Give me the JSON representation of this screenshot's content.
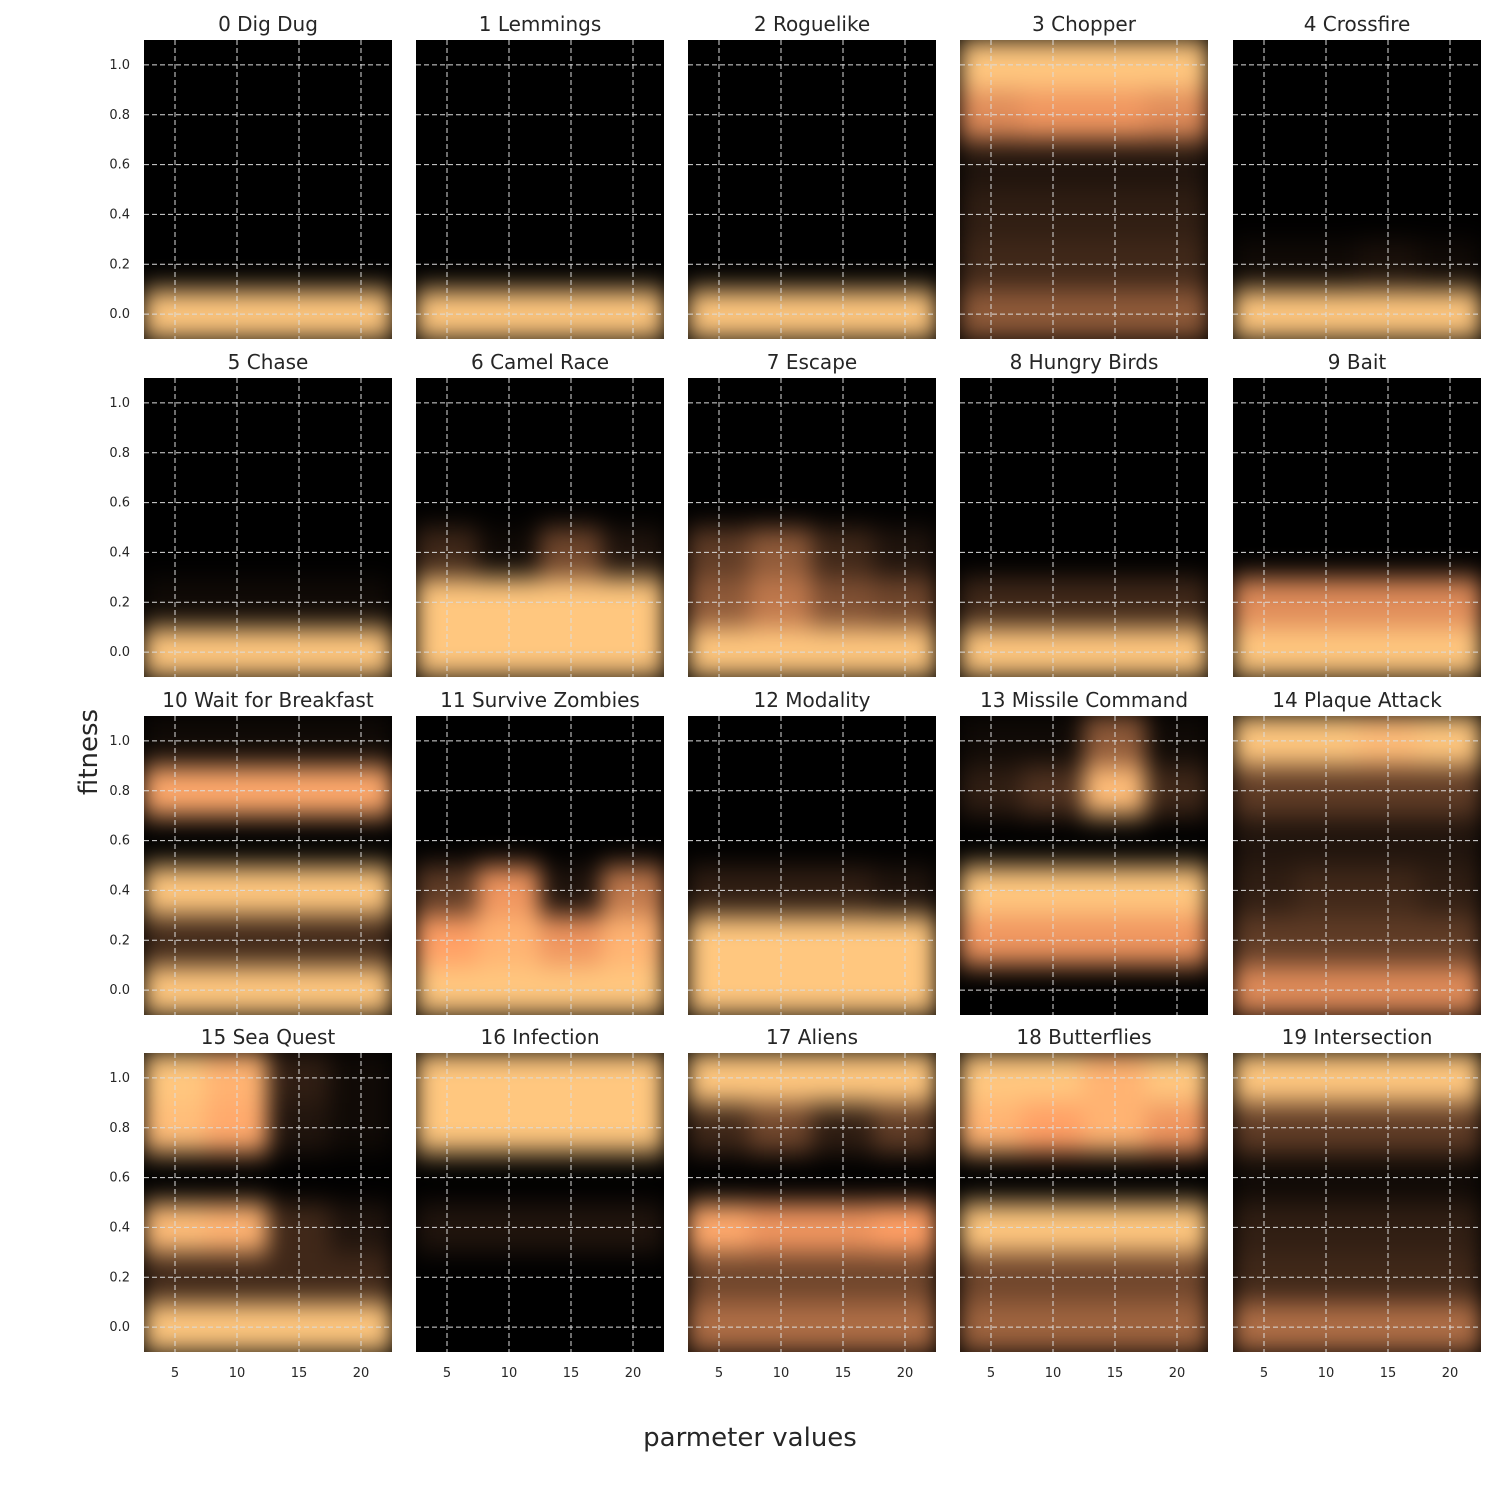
{
  "figure": {
    "xlabel": "parmeter values",
    "ylabel": "fitness"
  },
  "chart_data": {
    "type": "heatmap",
    "colormap": "copper",
    "xlim": [
      2.5,
      22.5
    ],
    "ylim": [
      -0.1,
      1.1
    ],
    "x_ticks": [
      5,
      10,
      15,
      20
    ],
    "y_ticks": [
      0.0,
      0.2,
      0.4,
      0.6,
      0.8,
      1.0
    ],
    "x_tick_labels": [
      "5",
      "10",
      "15",
      "20"
    ],
    "y_tick_labels": [
      "0.0",
      "0.2",
      "0.4",
      "0.6",
      "0.8",
      "1.0"
    ],
    "grid": "dashed",
    "fitness_bins": [
      0.0,
      0.2,
      0.4,
      0.6,
      0.8,
      1.0
    ],
    "parameter_columns": [
      5,
      10,
      15,
      20
    ],
    "panels": [
      {
        "title": "0 Dig Dug",
        "values": [
          [
            1,
            1,
            1,
            1
          ],
          [
            0,
            0,
            0,
            0
          ],
          [
            0,
            0,
            0,
            0
          ],
          [
            0,
            0,
            0,
            0
          ],
          [
            0,
            0,
            0,
            0
          ],
          [
            0,
            0,
            0,
            0
          ]
        ]
      },
      {
        "title": "1 Lemmings",
        "values": [
          [
            1,
            1,
            1,
            1
          ],
          [
            0,
            0,
            0,
            0
          ],
          [
            0,
            0,
            0,
            0
          ],
          [
            0,
            0,
            0,
            0
          ],
          [
            0,
            0,
            0,
            0
          ],
          [
            0,
            0,
            0,
            0
          ]
        ]
      },
      {
        "title": "2 Roguelike",
        "values": [
          [
            1,
            1,
            1,
            1
          ],
          [
            0,
            0,
            0,
            0
          ],
          [
            0,
            0,
            0,
            0
          ],
          [
            0,
            0,
            0,
            0
          ],
          [
            0,
            0,
            0,
            0
          ],
          [
            0,
            0,
            0,
            0
          ]
        ]
      },
      {
        "title": "3 Chopper",
        "values": [
          [
            0.45,
            0.45,
            0.45,
            0.45
          ],
          [
            0.2,
            0.2,
            0.2,
            0.2
          ],
          [
            0.15,
            0.15,
            0.15,
            0.15
          ],
          [
            0.1,
            0.1,
            0.1,
            0.1
          ],
          [
            0.7,
            0.75,
            0.75,
            0.7
          ],
          [
            1,
            1,
            1,
            1
          ]
        ]
      },
      {
        "title": "4 Crossfire",
        "values": [
          [
            1,
            1,
            1,
            1
          ],
          [
            0.05,
            0.05,
            0.08,
            0.05
          ],
          [
            0,
            0,
            0,
            0
          ],
          [
            0,
            0,
            0,
            0
          ],
          [
            0,
            0,
            0,
            0
          ],
          [
            0,
            0,
            0,
            0
          ]
        ]
      },
      {
        "title": "5 Chase",
        "values": [
          [
            1,
            1,
            1,
            1
          ],
          [
            0.05,
            0.05,
            0.05,
            0.05
          ],
          [
            0,
            0,
            0,
            0
          ],
          [
            0,
            0,
            0,
            0
          ],
          [
            0,
            0,
            0,
            0
          ],
          [
            0,
            0,
            0,
            0
          ]
        ]
      },
      {
        "title": "6 Camel Race",
        "values": [
          [
            1,
            1,
            1,
            1
          ],
          [
            1,
            1,
            1,
            1
          ],
          [
            0.2,
            0.05,
            0.35,
            0.1
          ],
          [
            0,
            0,
            0,
            0
          ],
          [
            0,
            0,
            0,
            0
          ],
          [
            0,
            0,
            0,
            0
          ]
        ]
      },
      {
        "title": "7 Escape",
        "values": [
          [
            1,
            1,
            1,
            1
          ],
          [
            0.45,
            0.6,
            0.4,
            0.35
          ],
          [
            0.3,
            0.45,
            0.2,
            0.1
          ],
          [
            0,
            0,
            0,
            0
          ],
          [
            0,
            0,
            0,
            0
          ],
          [
            0,
            0,
            0,
            0
          ]
        ]
      },
      {
        "title": "8 Hungry Birds",
        "values": [
          [
            1,
            1,
            1,
            1
          ],
          [
            0.2,
            0.2,
            0.2,
            0.2
          ],
          [
            0,
            0,
            0,
            0
          ],
          [
            0,
            0,
            0,
            0
          ],
          [
            0,
            0,
            0,
            0
          ],
          [
            0,
            0,
            0,
            0
          ]
        ]
      },
      {
        "title": "9 Bait",
        "values": [
          [
            1,
            1,
            1,
            1
          ],
          [
            0.7,
            0.7,
            0.7,
            0.7
          ],
          [
            0,
            0,
            0,
            0
          ],
          [
            0,
            0,
            0,
            0
          ],
          [
            0,
            0,
            0,
            0
          ],
          [
            0,
            0,
            0,
            0
          ]
        ]
      },
      {
        "title": "10 Wait for Breakfast",
        "values": [
          [
            1,
            1,
            1,
            1
          ],
          [
            0.2,
            0.2,
            0.2,
            0.2
          ],
          [
            1,
            1,
            1,
            1
          ],
          [
            0,
            0,
            0,
            0
          ],
          [
            0.85,
            0.85,
            0.85,
            0.85
          ],
          [
            0.05,
            0.05,
            0.05,
            0.05
          ]
        ]
      },
      {
        "title": "11 Survive Zombies",
        "values": [
          [
            1,
            1,
            1,
            1
          ],
          [
            0.8,
            0.9,
            0.75,
            0.9
          ],
          [
            0.3,
            0.75,
            0.1,
            0.6
          ],
          [
            0,
            0,
            0,
            0
          ],
          [
            0,
            0,
            0,
            0
          ],
          [
            0,
            0,
            0,
            0
          ]
        ]
      },
      {
        "title": "12 Modality",
        "values": [
          [
            1,
            1,
            1,
            1
          ],
          [
            1,
            1,
            1,
            1
          ],
          [
            0.15,
            0.15,
            0.15,
            0.1
          ],
          [
            0,
            0,
            0,
            0
          ],
          [
            0,
            0,
            0,
            0
          ],
          [
            0,
            0,
            0,
            0
          ]
        ]
      },
      {
        "title": "13 Missile Command",
        "values": [
          [
            0,
            0,
            0,
            0
          ],
          [
            0.75,
            0.75,
            0.75,
            0.75
          ],
          [
            1,
            1,
            1,
            1
          ],
          [
            0,
            0,
            0,
            0
          ],
          [
            0.15,
            0.25,
            0.95,
            0.2
          ],
          [
            0.05,
            0.05,
            0.45,
            0.05
          ]
        ]
      },
      {
        "title": "14 Plaque Attack",
        "values": [
          [
            0.7,
            0.7,
            0.7,
            0.7
          ],
          [
            0.3,
            0.3,
            0.3,
            0.3
          ],
          [
            0.15,
            0.2,
            0.2,
            0.15
          ],
          [
            0.1,
            0.1,
            0.1,
            0.1
          ],
          [
            0.3,
            0.3,
            0.3,
            0.3
          ],
          [
            1,
            1,
            0.95,
            1
          ]
        ]
      },
      {
        "title": "15 Sea Quest",
        "values": [
          [
            1,
            1,
            1,
            1
          ],
          [
            0.2,
            0.2,
            0.2,
            0.2
          ],
          [
            0.95,
            0.9,
            0.2,
            0.1
          ],
          [
            0,
            0,
            0,
            0
          ],
          [
            0.95,
            0.85,
            0.1,
            0.05
          ],
          [
            1,
            0.9,
            0.15,
            0.05
          ]
        ]
      },
      {
        "title": "16 Infection",
        "values": [
          [
            0,
            0,
            0,
            0
          ],
          [
            0,
            0,
            0,
            0
          ],
          [
            0.1,
            0.1,
            0.1,
            0.1
          ],
          [
            0,
            0,
            0,
            0
          ],
          [
            1,
            1,
            1,
            1
          ],
          [
            1,
            1,
            1,
            1
          ]
        ]
      },
      {
        "title": "17 Aliens",
        "values": [
          [
            0.55,
            0.55,
            0.55,
            0.55
          ],
          [
            0.35,
            0.35,
            0.35,
            0.35
          ],
          [
            0.85,
            0.75,
            0.75,
            0.8
          ],
          [
            0,
            0,
            0,
            0
          ],
          [
            0.2,
            0.35,
            0.15,
            0.3
          ],
          [
            1,
            1,
            1,
            1
          ]
        ]
      },
      {
        "title": "18 Butterflies",
        "values": [
          [
            0.5,
            0.5,
            0.5,
            0.5
          ],
          [
            0.35,
            0.35,
            0.35,
            0.35
          ],
          [
            1,
            1,
            1,
            1
          ],
          [
            0,
            0,
            0,
            0
          ],
          [
            0.9,
            0.8,
            0.9,
            0.75
          ],
          [
            1,
            1,
            0.9,
            1
          ]
        ]
      },
      {
        "title": "19 Intersection",
        "values": [
          [
            0.55,
            0.55,
            0.55,
            0.55
          ],
          [
            0.2,
            0.2,
            0.2,
            0.2
          ],
          [
            0.15,
            0.15,
            0.15,
            0.15
          ],
          [
            0.05,
            0.05,
            0.05,
            0.05
          ],
          [
            0.3,
            0.3,
            0.3,
            0.3
          ],
          [
            1,
            1,
            1,
            1
          ]
        ]
      }
    ]
  }
}
